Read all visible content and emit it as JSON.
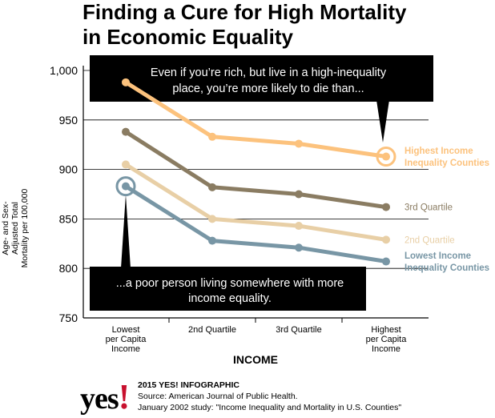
{
  "chart_data": {
    "type": "line",
    "title": "Finding a Cure for High Mortality in Economic Equality",
    "title_lines": [
      "Finding a Cure for High Mortality",
      "in Economic Equality"
    ],
    "ylabel_lines": [
      "Age- and Sex-",
      "Adjusted Total",
      "Mortality per 100,000"
    ],
    "xlabel": "INCOME",
    "ylim": [
      750,
      1000
    ],
    "y_ticks": [
      750,
      800,
      850,
      900,
      950,
      1000
    ],
    "y_tick_labels": [
      "750",
      "800",
      "850",
      "900",
      "950",
      "1,000"
    ],
    "grid": true,
    "categories": [
      [
        "Lowest",
        "per Capita",
        "Income"
      ],
      [
        "2nd Quartile"
      ],
      [
        "3rd Quartile"
      ],
      [
        "Highest",
        "per Capita",
        "Income"
      ]
    ],
    "series": [
      {
        "name": "Highest Income Inequality Counties",
        "label_lines": [
          "Highest Income",
          "Inequality Counties"
        ],
        "values": [
          988,
          933,
          926,
          913
        ],
        "color": "#fcc27d"
      },
      {
        "name": "3rd Quartile",
        "label_lines": [
          "3rd Quartile"
        ],
        "values": [
          938,
          882,
          875,
          862
        ],
        "color": "#8a7c62"
      },
      {
        "name": "2nd Quartile",
        "label_lines": [
          "2nd Quartile"
        ],
        "values": [
          905,
          850,
          843,
          829
        ],
        "color": "#e8cfa6"
      },
      {
        "name": "Lowest Income Inequality Counties",
        "label_lines": [
          "Lowest Income",
          "Inequality Counties"
        ],
        "values": [
          883,
          828,
          821,
          807
        ],
        "color": "#7896a5"
      }
    ],
    "annotations": [
      {
        "text_lines": [
          "Even if you’re rich, but live in a high-inequality",
          "place, you’re more likely to die than..."
        ],
        "series": 0,
        "point": 3
      },
      {
        "text_lines": [
          "...a poor person living somewhere with more",
          "income equality."
        ],
        "series": 3,
        "point": 0
      }
    ]
  },
  "credits": {
    "line1": "2015 YES! INFOGRAPHIC",
    "line2": "Source: American Journal of Public Health.",
    "line3": "January 2002 study: \"Income Inequality and Mortality in U.S. Counties\""
  },
  "logo": {
    "text": "yes",
    "mark": "!"
  }
}
